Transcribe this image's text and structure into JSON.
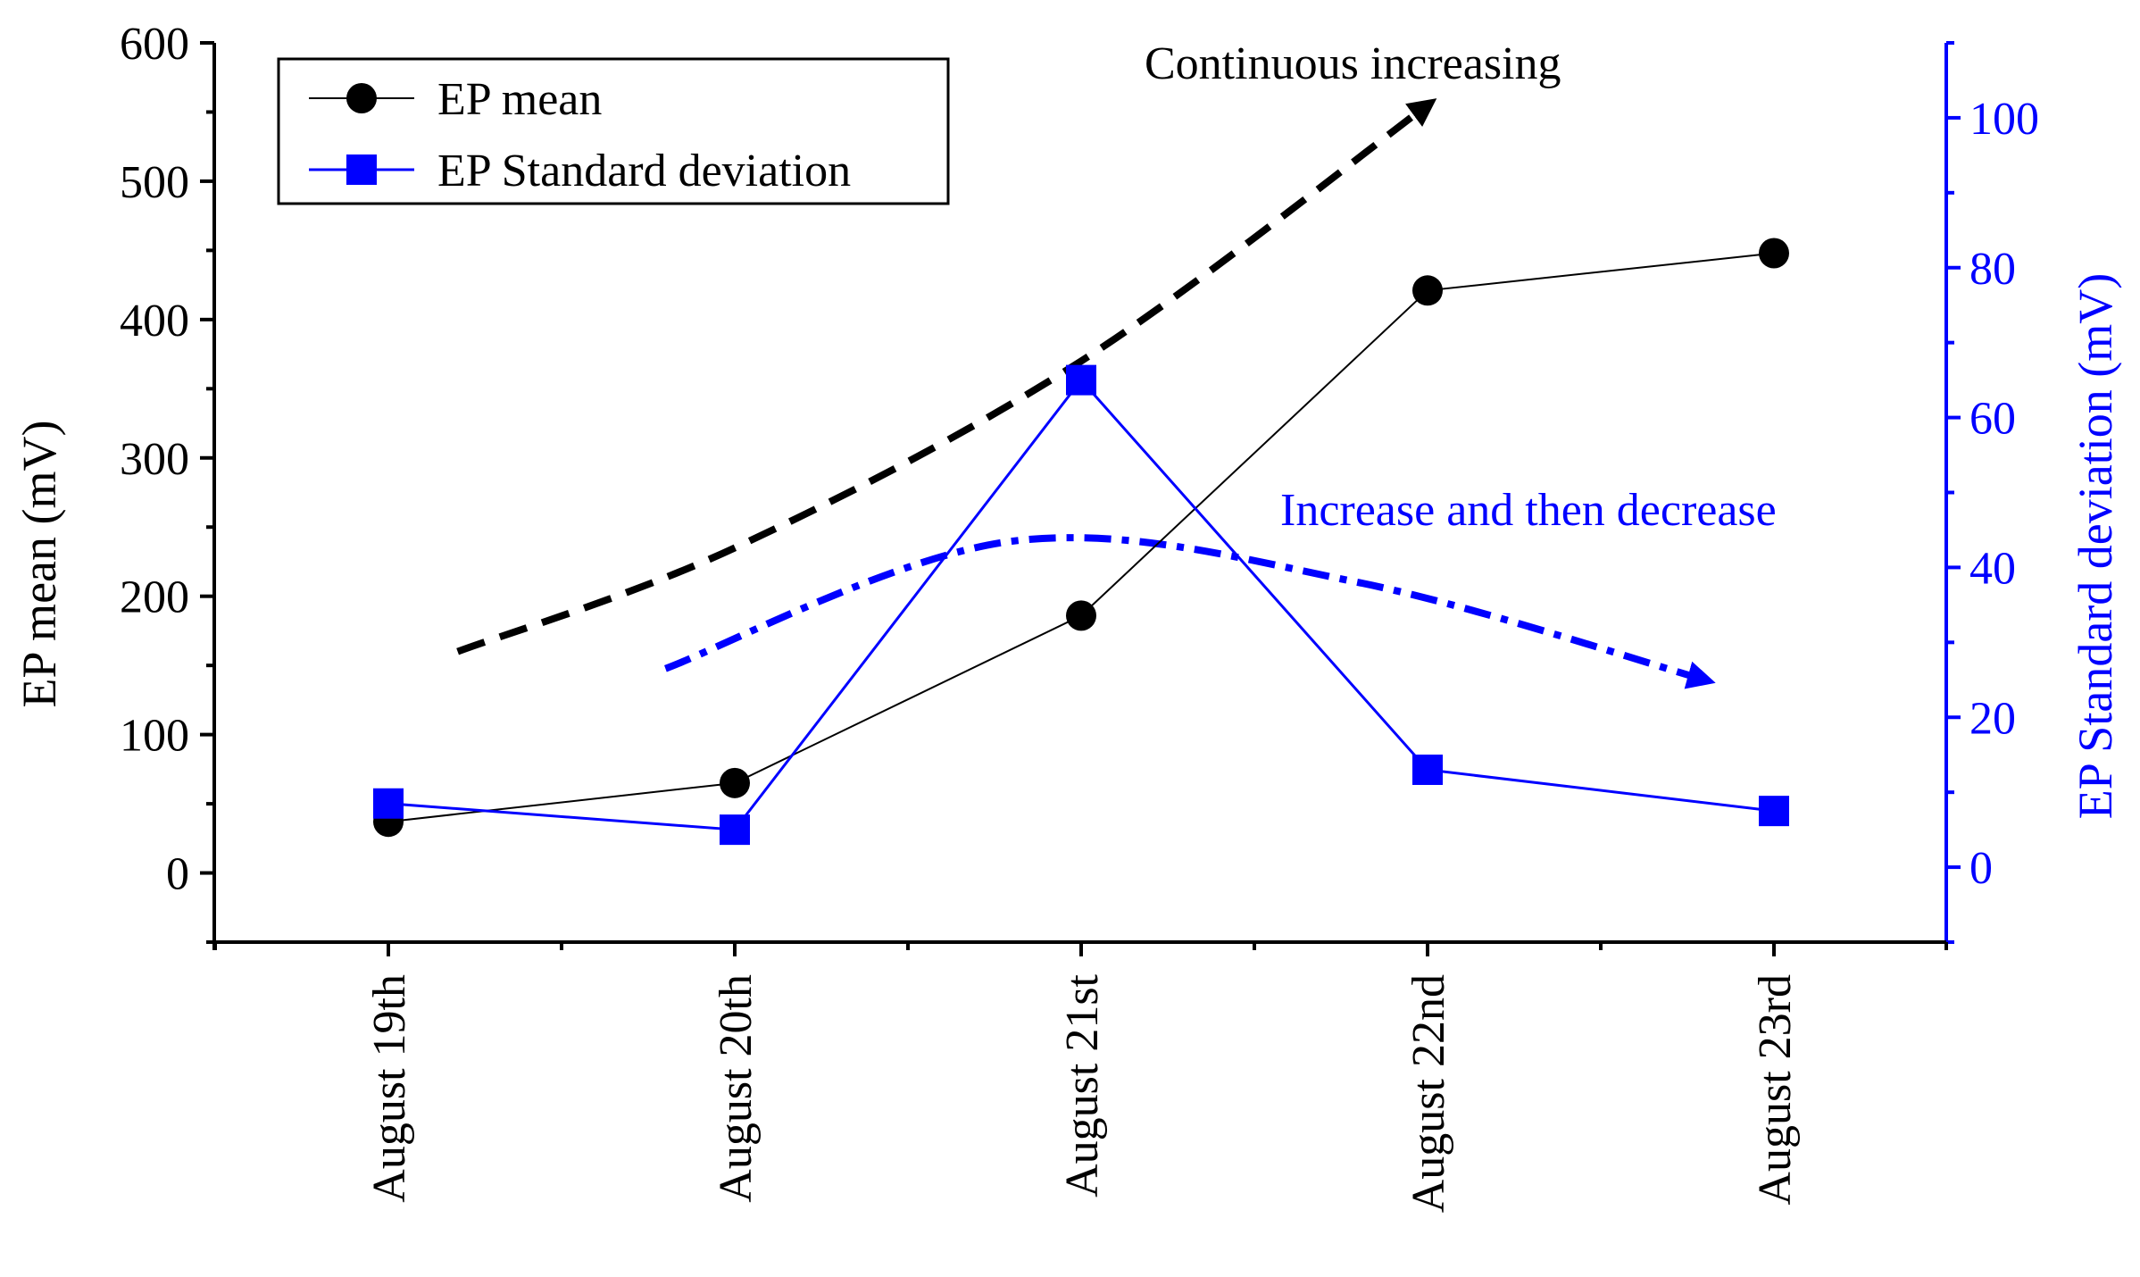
{
  "colors": {
    "mean": "#000000",
    "std": "#0000ff",
    "axis": "#000000",
    "right_axis": "#0000ff",
    "background": "#ffffff"
  },
  "chart_data": {
    "type": "line",
    "categories": [
      "August 19th",
      "August 20th",
      "August 21st",
      "August 22nd",
      "August 23rd"
    ],
    "series": [
      {
        "name": "EP mean",
        "axis": "left",
        "marker": "circle",
        "values": [
          37,
          65,
          186,
          421,
          448
        ]
      },
      {
        "name": "EP Standard deviation",
        "axis": "right",
        "marker": "square",
        "values": [
          8.5,
          5,
          65,
          13,
          7.5
        ]
      }
    ],
    "ylabel": "EP mean (mV)",
    "ylim": [
      -50,
      600
    ],
    "yticks": [
      0,
      100,
      200,
      300,
      400,
      500,
      600
    ],
    "y2label": "EP Standard deviation (mV)",
    "y2lim": [
      -10,
      110
    ],
    "y2ticks": [
      0,
      20,
      40,
      60,
      80,
      100
    ],
    "legend_position": "top-left",
    "annotations": [
      {
        "text": "Continuous increasing",
        "color": "black",
        "axis": "left",
        "curve_points": [
          [
            0.2,
            160
          ],
          [
            1.0,
            235
          ],
          [
            2.0,
            370
          ],
          [
            3.0,
            555
          ]
        ]
      },
      {
        "text": "Increase and then decrease",
        "color": "blue",
        "axis": "right",
        "curve_points": [
          [
            0.8,
            26.5
          ],
          [
            1.8,
            43.5
          ],
          [
            2.8,
            38
          ],
          [
            3.8,
            25
          ]
        ]
      }
    ]
  }
}
